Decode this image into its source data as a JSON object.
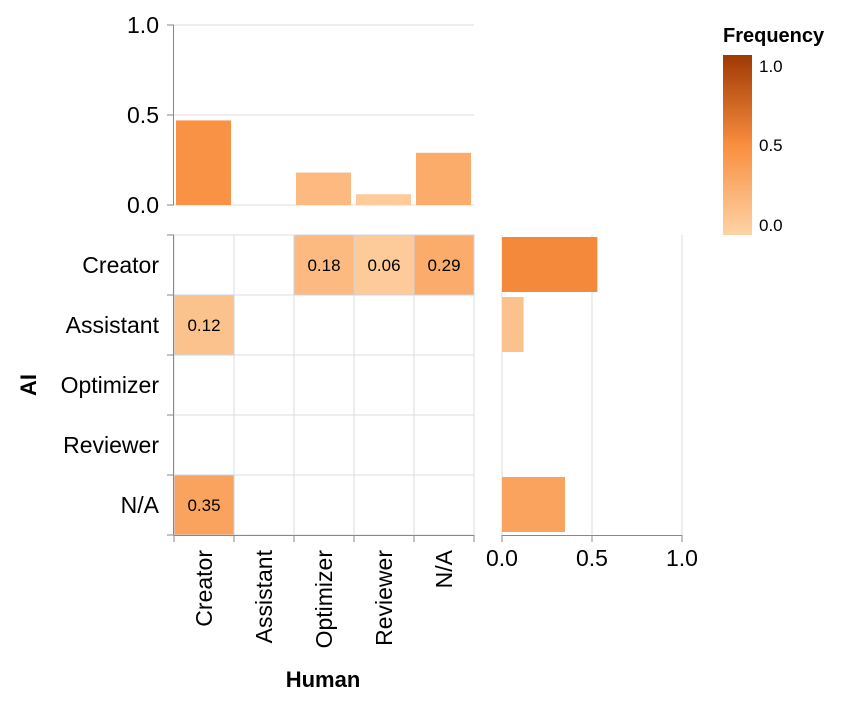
{
  "chart_data": {
    "type": "heatmap",
    "x_label": "Human",
    "y_label": "AI",
    "x_categories": [
      "Creator",
      "Assistant",
      "Optimizer",
      "Reviewer",
      "N/A"
    ],
    "y_categories": [
      "Creator",
      "Assistant",
      "Optimizer",
      "Reviewer",
      "N/A"
    ],
    "cells": [
      {
        "ai": "Creator",
        "human": "Optimizer",
        "value": 0.18,
        "label": "0.18"
      },
      {
        "ai": "Creator",
        "human": "Reviewer",
        "value": 0.06,
        "label": "0.06"
      },
      {
        "ai": "Creator",
        "human": "N/A",
        "value": 0.29,
        "label": "0.29"
      },
      {
        "ai": "Assistant",
        "human": "Creator",
        "value": 0.12,
        "label": "0.12"
      },
      {
        "ai": "N/A",
        "human": "Creator",
        "value": 0.35,
        "label": "0.35"
      }
    ],
    "top_marginal": {
      "axis_range": [
        0,
        1
      ],
      "ticks": [
        "0.0",
        "0.5",
        "1.0"
      ],
      "values": [
        {
          "category": "Creator",
          "value": 0.47
        },
        {
          "category": "Assistant",
          "value": 0.0
        },
        {
          "category": "Optimizer",
          "value": 0.18
        },
        {
          "category": "Reviewer",
          "value": 0.06
        },
        {
          "category": "N/A",
          "value": 0.29
        }
      ]
    },
    "right_marginal": {
      "axis_range": [
        0,
        1
      ],
      "ticks": [
        "0.0",
        "0.5",
        "1.0"
      ],
      "values": [
        {
          "category": "Creator",
          "value": 0.53
        },
        {
          "category": "Assistant",
          "value": 0.12
        },
        {
          "category": "Optimizer",
          "value": 0.0
        },
        {
          "category": "Reviewer",
          "value": 0.0
        },
        {
          "category": "N/A",
          "value": 0.35
        }
      ]
    },
    "legend": {
      "title": "Frequency",
      "ticks": [
        "1.0",
        "0.5",
        "0.0"
      ],
      "range": [
        0,
        1
      ]
    },
    "colors": {
      "low": "#fdd3a6",
      "mid": "#f98e3f",
      "high": "#9e3903"
    }
  }
}
